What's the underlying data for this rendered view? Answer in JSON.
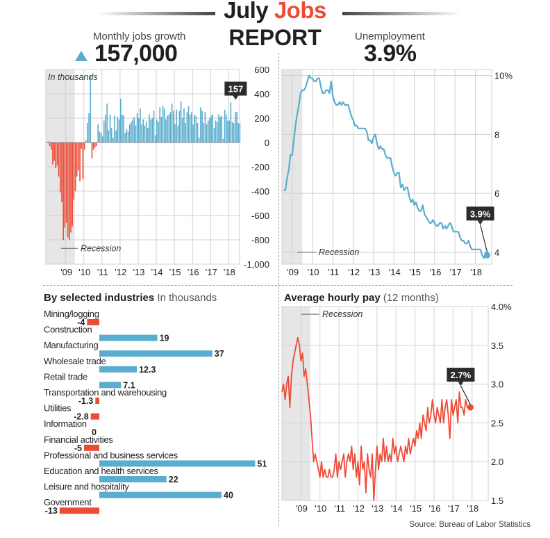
{
  "header": {
    "title_part1": "July ",
    "title_part2": "Jobs",
    "subtitle": "REPORT"
  },
  "jobs_growth": {
    "label": "Monthly jobs growth",
    "value": "157,000",
    "trend": "up-triangle-icon"
  },
  "unemployment": {
    "label": "Unemployment",
    "value": "3.9%"
  },
  "source": "Source: Bureau of Labor Statistics",
  "colors": {
    "blue": "#5aadce",
    "red": "#ee4b37",
    "recession": "#e6e6e6",
    "grid": "#d0d0d0"
  },
  "chart_data": [
    {
      "id": "jobs",
      "type": "bar",
      "title": "Monthly jobs growth",
      "ylabel": "In thousands",
      "ylim": [
        -1000,
        600
      ],
      "yticks": [
        600,
        400,
        200,
        0,
        -200,
        -400,
        -600,
        -800,
        -1000
      ],
      "ytick_labels": [
        "600",
        "400",
        "200",
        "0",
        "-200",
        "-400",
        "-600",
        "-800",
        "-1,000"
      ],
      "xlim": [
        2007.9,
        2018.6
      ],
      "xticks": [
        2009,
        2010,
        2011,
        2012,
        2013,
        2014,
        2015,
        2016,
        2017,
        2018
      ],
      "xtick_labels": [
        "'09",
        "'10",
        "'11",
        "'12",
        "'13",
        "'14",
        "'15",
        "'16",
        "'17",
        "'18"
      ],
      "recession": [
        2007.9,
        2009.5
      ],
      "recession_label": "Recession",
      "end_label": "157",
      "start": 2008.0,
      "values": [
        10,
        -30,
        -60,
        -180,
        -150,
        -210,
        -190,
        -280,
        -410,
        -490,
        -800,
        -700,
        -660,
        -780,
        -800,
        -740,
        -690,
        -470,
        -400,
        -280,
        -230,
        -320,
        -50,
        -300,
        -60,
        20,
        160,
        240,
        550,
        -130,
        -60,
        -40,
        -30,
        150,
        90,
        80,
        50,
        180,
        230,
        320,
        100,
        230,
        120,
        40,
        220,
        100,
        210,
        190,
        360,
        230,
        220,
        80,
        110,
        90,
        150,
        170,
        190,
        210,
        140,
        240,
        200,
        280,
        150,
        190,
        140,
        170,
        120,
        230,
        190,
        200,
        260,
        60,
        190,
        170,
        290,
        210,
        300,
        280,
        190,
        220,
        230,
        250,
        320,
        260,
        150,
        270,
        140,
        260,
        340,
        200,
        280,
        160,
        250,
        300,
        230,
        250,
        150,
        230,
        220,
        160,
        40,
        290,
        260,
        160,
        250,
        150,
        180,
        200,
        220,
        230,
        120,
        180,
        170,
        230,
        210,
        220,
        30,
        270,
        230,
        180,
        180,
        330,
        170,
        160,
        250,
        250,
        160,
        157
      ]
    },
    {
      "id": "unemployment",
      "type": "line",
      "title": "Unemployment",
      "ylim": [
        3.6,
        10.2
      ],
      "yticks": [
        10,
        8,
        6,
        4
      ],
      "ytick_labels": [
        "10%",
        "8",
        "6",
        "4"
      ],
      "xlim": [
        2008.5,
        2018.8
      ],
      "xticks": [
        2009,
        2010,
        2011,
        2012,
        2013,
        2014,
        2015,
        2016,
        2017,
        2018
      ],
      "xtick_labels": [
        "'09",
        "'10",
        "'11",
        "'12",
        "'13",
        "'14",
        "'15",
        "'16",
        "'17",
        "'18"
      ],
      "recession": [
        2008.5,
        2009.5
      ],
      "recession_label": "Recession",
      "end_label": "3.9%",
      "start": 2008.583,
      "values": [
        6.1,
        6.1,
        6.5,
        6.8,
        7.3,
        7.3,
        7.8,
        8.3,
        8.7,
        9.0,
        9.4,
        9.5,
        9.5,
        9.6,
        9.8,
        10.0,
        9.9,
        9.9,
        9.8,
        9.8,
        9.9,
        9.9,
        9.6,
        9.4,
        9.4,
        9.5,
        9.5,
        9.4,
        9.8,
        9.3,
        9.1,
        9.0,
        9.0,
        9.1,
        9.0,
        9.1,
        9.0,
        9.0,
        9.0,
        8.8,
        8.6,
        8.5,
        8.3,
        8.3,
        8.2,
        8.2,
        8.2,
        8.2,
        8.2,
        8.1,
        7.8,
        7.8,
        7.7,
        7.9,
        8.0,
        7.7,
        7.5,
        7.6,
        7.5,
        7.5,
        7.3,
        7.2,
        7.2,
        7.2,
        6.9,
        6.7,
        6.6,
        6.7,
        6.7,
        6.2,
        6.3,
        6.1,
        6.2,
        6.2,
        5.9,
        5.7,
        5.8,
        5.6,
        5.7,
        5.5,
        5.4,
        5.4,
        5.6,
        5.3,
        5.2,
        5.1,
        5.0,
        5.0,
        5.1,
        5.0,
        4.9,
        4.9,
        5.0,
        5.0,
        4.8,
        4.9,
        4.8,
        4.9,
        5.0,
        4.9,
        4.7,
        4.7,
        4.7,
        4.7,
        4.5,
        4.4,
        4.4,
        4.3,
        4.3,
        4.4,
        4.2,
        4.1,
        4.1,
        4.1,
        4.1,
        4.1,
        4.1,
        3.9,
        3.8,
        4.0,
        3.9
      ]
    },
    {
      "id": "industries",
      "type": "bar",
      "orientation": "horizontal",
      "title": "By selected industries",
      "subtitle": "In thousands",
      "categories": [
        "Mining/logging",
        "Construction",
        "Manufacturing",
        "Wholesale trade",
        "Retail trade",
        "Transportation and warehousing",
        "Utilities",
        "Information",
        "Financial activities",
        "Professional and business services",
        "Education and health services",
        "Leisure and hospitality",
        "Government"
      ],
      "values": [
        -4,
        19,
        37,
        12.3,
        7.1,
        -1.3,
        -2.8,
        0,
        -5,
        51,
        22,
        40,
        -13
      ],
      "value_labels": [
        "-4",
        "19",
        "37",
        "12.3",
        "7.1",
        "-1.3",
        "-2.8",
        "0",
        "-5",
        "51",
        "22",
        "40",
        "-13"
      ]
    },
    {
      "id": "hourly_pay",
      "type": "line",
      "title": "Average hourly pay",
      "subtitle": "(12 months)",
      "ylim": [
        1.5,
        4.0
      ],
      "yticks": [
        4.0,
        3.5,
        3.0,
        2.5,
        2.0,
        1.5
      ],
      "ytick_labels": [
        "4.0%",
        "3.5",
        "3.0",
        "2.5",
        "2.0",
        "1.5"
      ],
      "xlim": [
        2008.0,
        2018.85
      ],
      "xticks": [
        2009,
        2010,
        2011,
        2012,
        2013,
        2014,
        2015,
        2016,
        2017,
        2018
      ],
      "xtick_labels": [
        "'09",
        "'10",
        "'11",
        "'12",
        "'13",
        "'14",
        "'15",
        "'16",
        "'17",
        "'18"
      ],
      "recession": [
        2008.0,
        2009.5
      ],
      "recession_label": "Recession",
      "end_label": "2.7%",
      "start": 2008.0,
      "values": [
        2.9,
        3.0,
        2.8,
        3.0,
        3.1,
        2.7,
        3.1,
        3.3,
        3.4,
        3.5,
        3.6,
        3.5,
        3.3,
        3.4,
        3.1,
        3.2,
        3.0,
        2.8,
        2.6,
        2.3,
        2.0,
        2.1,
        2.0,
        1.9,
        1.8,
        2.0,
        1.8,
        1.9,
        1.8,
        1.8,
        1.9,
        1.8,
        1.8,
        1.9,
        2.1,
        1.8,
        2.0,
        1.9,
        2.0,
        2.1,
        1.8,
        2.0,
        2.1,
        2.0,
        2.2,
        1.9,
        2.1,
        1.8,
        2.0,
        1.7,
        2.2,
        1.9,
        2.0,
        1.6,
        2.1,
        1.9,
        1.8,
        2.1,
        1.5,
        1.9,
        2.2,
        1.9,
        2.1,
        2.0,
        2.3,
        2.0,
        2.2,
        2.0,
        2.1,
        2.0,
        2.3,
        2.1,
        2.2,
        2.0,
        2.1,
        2.2,
        2.1,
        2.0,
        2.2,
        2.1,
        2.3,
        2.1,
        2.2,
        2.3,
        2.2,
        2.4,
        2.3,
        2.5,
        2.3,
        2.6,
        2.5,
        2.4,
        2.7,
        2.5,
        2.6,
        2.8,
        2.6,
        2.5,
        2.7,
        2.6,
        2.5,
        2.8,
        2.5,
        2.7,
        2.8,
        2.6,
        2.3,
        2.8,
        2.6,
        2.7,
        2.8,
        2.5,
        2.9,
        2.7,
        2.7,
        2.6,
        2.8,
        2.7,
        2.7,
        2.7
      ]
    }
  ]
}
